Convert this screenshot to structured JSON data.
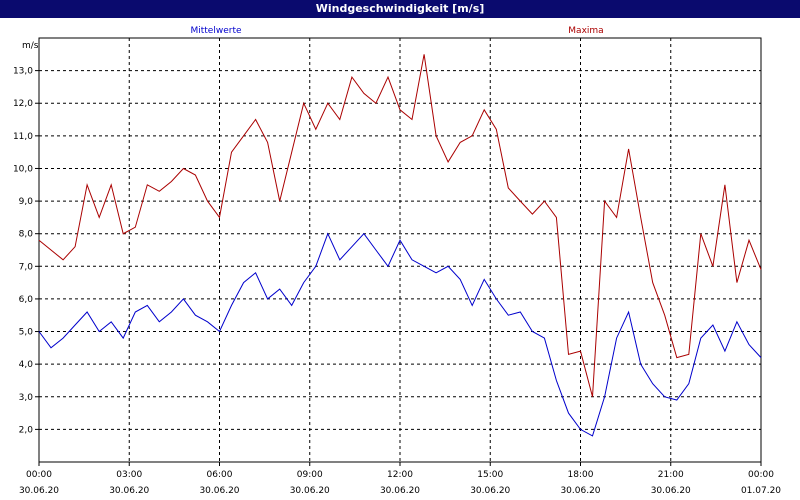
{
  "window": {
    "title": "Windgeschwindigkeit [m/s]"
  },
  "colors": {
    "titlebar": "#0a0a6e",
    "mean": "#0000cc",
    "max": "#aa0000",
    "grid": "#000000"
  },
  "chart_data": {
    "type": "line",
    "title": "Windgeschwindigkeit [m/s]",
    "ylabel": "m/s",
    "ylim": [
      1.0,
      14.0
    ],
    "yticks": [
      2.0,
      3.0,
      4.0,
      5.0,
      6.0,
      7.0,
      8.0,
      9.0,
      10.0,
      11.0,
      12.0,
      13.0
    ],
    "ytick_labels": [
      "2,0",
      "3,0",
      "4,0",
      "5,0",
      "6,0",
      "7,0",
      "8,0",
      "9,0",
      "10,0",
      "11,0",
      "12,0",
      "13,0"
    ],
    "xlim_hours": [
      0,
      24
    ],
    "xticks_hours": [
      0,
      3,
      6,
      9,
      12,
      15,
      18,
      21,
      24
    ],
    "xtick_time_labels": [
      "00:00",
      "03:00",
      "06:00",
      "09:00",
      "12:00",
      "15:00",
      "18:00",
      "21:00",
      "00:00"
    ],
    "xtick_date_labels": [
      "30.06.20",
      "30.06.20",
      "30.06.20",
      "30.06.20",
      "30.06.20",
      "30.06.20",
      "30.06.20",
      "30.06.20",
      "01.07.20"
    ],
    "grid": true,
    "legend_placement": "top",
    "series": [
      {
        "name": "Mittelwerte",
        "color": "#0000cc",
        "x_hours": [
          0,
          0.4,
          0.8,
          1.2,
          1.6,
          2.0,
          2.4,
          2.8,
          3.2,
          3.6,
          4.0,
          4.4,
          4.8,
          5.2,
          5.6,
          6.0,
          6.4,
          6.8,
          7.2,
          7.6,
          8.0,
          8.4,
          8.8,
          9.2,
          9.6,
          10.0,
          10.4,
          10.8,
          11.2,
          11.6,
          12.0,
          12.4,
          12.8,
          13.2,
          13.6,
          14.0,
          14.4,
          14.8,
          15.2,
          15.6,
          16.0,
          16.4,
          16.8,
          17.2,
          17.6,
          18.0,
          18.4,
          18.8,
          19.2,
          19.6,
          20.0,
          20.4,
          20.8,
          21.2,
          21.6,
          22.0,
          22.4,
          22.8,
          23.2,
          23.6,
          24.0
        ],
        "values": [
          5.0,
          4.5,
          4.8,
          5.2,
          5.6,
          5.0,
          5.3,
          4.8,
          5.6,
          5.8,
          5.3,
          5.6,
          6.0,
          5.5,
          5.3,
          5.0,
          5.8,
          6.5,
          6.8,
          6.0,
          6.3,
          5.8,
          6.5,
          7.0,
          8.0,
          7.2,
          7.6,
          8.0,
          7.5,
          7.0,
          7.8,
          7.2,
          7.0,
          6.8,
          7.0,
          6.6,
          5.8,
          6.6,
          6.0,
          5.5,
          5.6,
          5.0,
          4.8,
          3.5,
          2.5,
          2.0,
          1.8,
          3.0,
          4.8,
          5.6,
          4.0,
          3.4,
          3.0,
          2.9,
          3.4,
          4.8,
          5.2,
          4.4,
          5.3,
          4.6,
          4.2
        ]
      },
      {
        "name": "Maxima",
        "color": "#aa0000",
        "x_hours": [
          0,
          0.4,
          0.8,
          1.2,
          1.6,
          2.0,
          2.4,
          2.8,
          3.2,
          3.6,
          4.0,
          4.4,
          4.8,
          5.2,
          5.6,
          6.0,
          6.4,
          6.8,
          7.2,
          7.6,
          8.0,
          8.4,
          8.8,
          9.2,
          9.6,
          10.0,
          10.4,
          10.8,
          11.2,
          11.6,
          12.0,
          12.4,
          12.8,
          13.2,
          13.6,
          14.0,
          14.4,
          14.8,
          15.2,
          15.6,
          16.0,
          16.4,
          16.8,
          17.2,
          17.6,
          18.0,
          18.4,
          18.8,
          19.2,
          19.6,
          20.0,
          20.4,
          20.8,
          21.2,
          21.6,
          22.0,
          22.4,
          22.8,
          23.2,
          23.6,
          24.0
        ],
        "values": [
          7.8,
          7.5,
          7.2,
          7.6,
          9.5,
          8.5,
          9.5,
          8.0,
          8.2,
          9.5,
          9.3,
          9.6,
          10.0,
          9.8,
          9.0,
          8.5,
          10.5,
          11.0,
          11.5,
          10.8,
          9.0,
          10.5,
          12.0,
          11.2,
          12.0,
          11.5,
          12.8,
          12.3,
          12.0,
          12.8,
          11.8,
          11.5,
          13.5,
          11.0,
          10.2,
          10.8,
          11.0,
          11.8,
          11.2,
          9.4,
          9.0,
          8.6,
          9.0,
          8.5,
          4.3,
          4.4,
          3.0,
          9.0,
          8.5,
          10.6,
          8.5,
          6.5,
          5.5,
          4.2,
          4.3,
          8.0,
          7.0,
          9.5,
          6.5,
          7.8,
          6.9
        ]
      }
    ]
  }
}
